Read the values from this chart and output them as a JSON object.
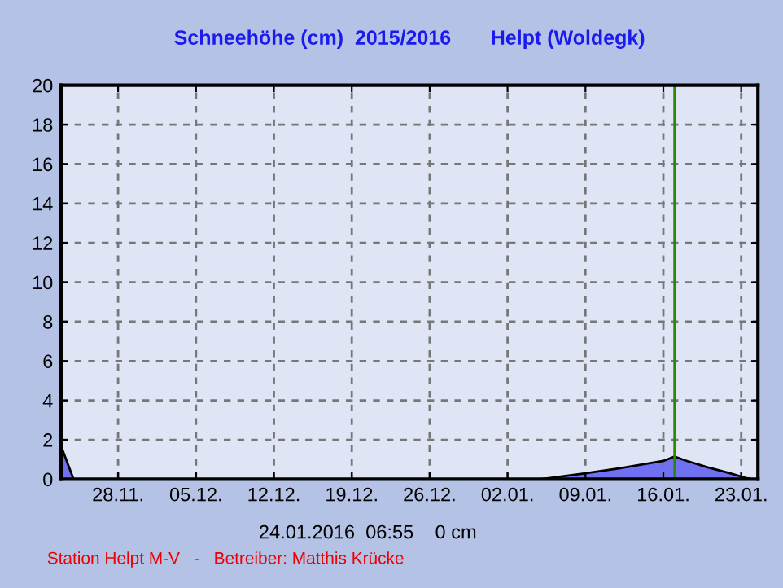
{
  "chart_data": {
    "type": "area",
    "title": "Schneehöhe (cm)  2015/2016       Helpt (Woldegk)",
    "x": [
      "2015-11-23",
      "2015-11-24",
      "2016-01-05",
      "2016-01-09",
      "2016-01-12",
      "2016-01-16",
      "2016-01-17",
      "2016-01-18",
      "2016-01-20",
      "2016-01-22",
      "2016-01-23T12:00",
      "2016-01-24"
    ],
    "series": [
      {
        "color": "#4a4af0",
        "values": [
          1.5,
          0,
          0,
          0.3,
          0.55,
          0.93,
          1.15,
          0.95,
          0.6,
          0.3,
          0.05,
          0
        ]
      }
    ],
    "xlim": [
      "2015-11-22T21:00",
      "2016-01-24T12:00"
    ],
    "xticks": [
      {
        "value": "2015-11-28",
        "label": "28.11."
      },
      {
        "value": "2015-12-05",
        "label": "05.12."
      },
      {
        "value": "2015-12-12",
        "label": "12.12."
      },
      {
        "value": "2015-12-19",
        "label": "19.12."
      },
      {
        "value": "2015-12-26",
        "label": "26.12."
      },
      {
        "value": "2016-01-02",
        "label": "02.01."
      },
      {
        "value": "2016-01-09",
        "label": "09.01."
      },
      {
        "value": "2016-01-16",
        "label": "16.01."
      },
      {
        "value": "2016-01-23",
        "label": "23.01."
      }
    ],
    "ylim": [
      0,
      20
    ],
    "yticks": [
      0,
      2,
      4,
      6,
      8,
      10,
      12,
      14,
      16,
      18,
      20
    ],
    "grid": true,
    "ref_lines": [
      {
        "axis": "x",
        "value": "2016-01-17",
        "color": "#2a8a00"
      }
    ],
    "annotations": [
      "24.01.2016  06:55    0 cm",
      "Station Helpt M-V   -   Betreiber: Matthis Krücke"
    ]
  }
}
